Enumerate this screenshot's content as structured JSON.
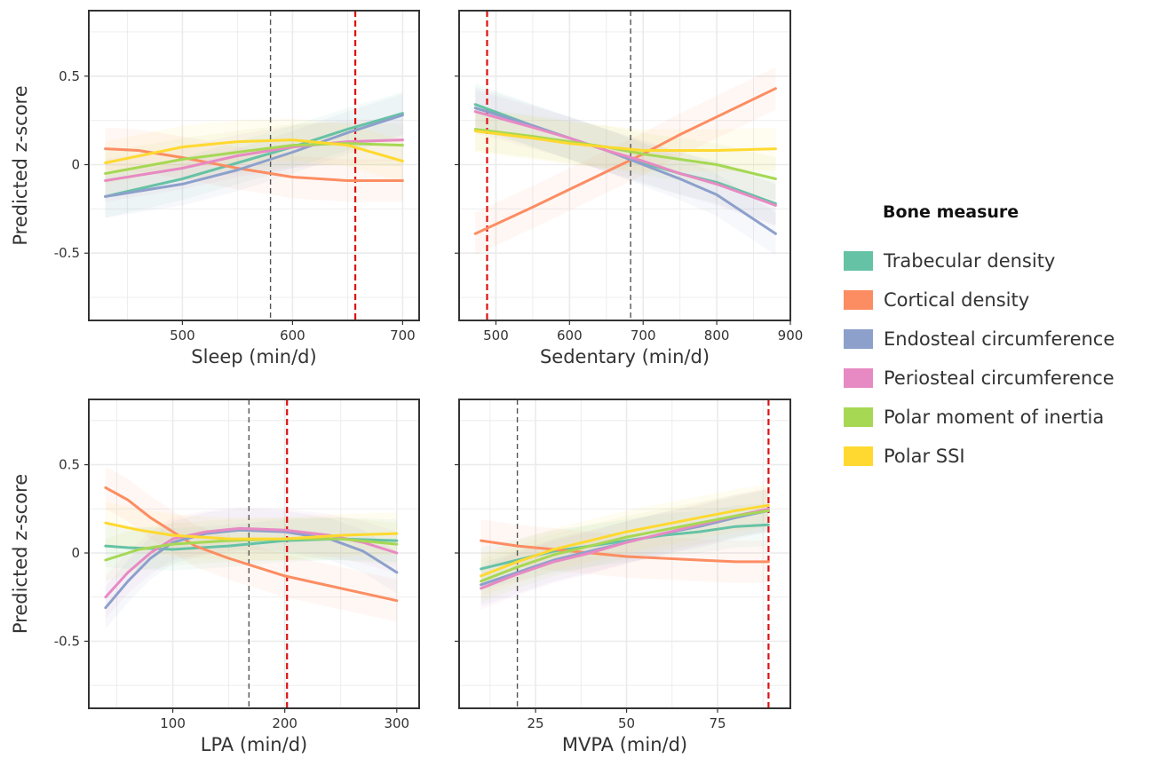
{
  "legend": {
    "title": "Bone measure",
    "items": [
      {
        "label": "Trabecular density",
        "color": "#66C2A5"
      },
      {
        "label": "Cortical density",
        "color": "#FC8D62"
      },
      {
        "label": "Endosteal circumference",
        "color": "#8DA0CB"
      },
      {
        "label": "Periosteal circumference",
        "color": "#E78AC3"
      },
      {
        "label": "Polar moment of inertia",
        "color": "#A6D854"
      },
      {
        "label": "Polar SSI",
        "color": "#FFD92F"
      }
    ]
  },
  "chart_data": [
    {
      "type": "line",
      "xlabel": "Sleep (min/d)",
      "ylabel": "Predicted z-score",
      "xlim": [
        415,
        715
      ],
      "ylim": [
        -0.88,
        0.87
      ],
      "xticks": [
        500,
        600,
        700
      ],
      "xtick_labels": [
        "500",
        "600",
        "700"
      ],
      "yticks": [
        0.5,
        0,
        -0.5
      ],
      "ytick_labels": [
        "0.5",
        "0",
        "-0.5"
      ],
      "show_yticklabels": true,
      "vlines": [
        {
          "x": 580,
          "color": "#555555",
          "style": "dashed"
        },
        {
          "x": 657,
          "color": "#DD1111",
          "style": "dashed"
        }
      ],
      "series": [
        {
          "name": "Trabecular density",
          "x": [
            430,
            500,
            550,
            600,
            650,
            700
          ],
          "y": [
            -0.18,
            -0.08,
            0.01,
            0.1,
            0.2,
            0.29
          ]
        },
        {
          "name": "Cortical density",
          "x": [
            430,
            460,
            500,
            550,
            600,
            650,
            700
          ],
          "y": [
            0.09,
            0.08,
            0.04,
            -0.02,
            -0.07,
            -0.09,
            -0.09
          ]
        },
        {
          "name": "Endosteal circumference",
          "x": [
            430,
            500,
            550,
            600,
            650,
            700
          ],
          "y": [
            -0.18,
            -0.11,
            -0.03,
            0.07,
            0.18,
            0.28
          ]
        },
        {
          "name": "Periosteal circumference",
          "x": [
            430,
            500,
            550,
            600,
            650,
            700
          ],
          "y": [
            -0.09,
            -0.02,
            0.05,
            0.1,
            0.13,
            0.14
          ]
        },
        {
          "name": "Polar moment of inertia",
          "x": [
            430,
            500,
            550,
            600,
            650,
            700
          ],
          "y": [
            -0.05,
            0.03,
            0.07,
            0.11,
            0.12,
            0.11
          ]
        },
        {
          "name": "Polar SSI",
          "x": [
            430,
            500,
            550,
            600,
            650,
            700
          ],
          "y": [
            0.01,
            0.1,
            0.13,
            0.14,
            0.11,
            0.02
          ]
        }
      ]
    },
    {
      "type": "line",
      "xlabel": "Sedentary (min/d)",
      "ylabel": "",
      "xlim": [
        450,
        900
      ],
      "ylim": [
        -0.88,
        0.87
      ],
      "xticks": [
        500,
        600,
        700,
        800,
        900
      ],
      "xtick_labels": [
        "500",
        "600",
        "700",
        "800",
        "900"
      ],
      "yticks": [
        0.5,
        0,
        -0.5
      ],
      "ytick_labels": [],
      "show_yticklabels": false,
      "vlines": [
        {
          "x": 488,
          "color": "#DD1111",
          "style": "dashed"
        },
        {
          "x": 683,
          "color": "#555555",
          "style": "dashed"
        }
      ],
      "series": [
        {
          "name": "Trabecular density",
          "x": [
            472,
            550,
            600,
            650,
            700,
            750,
            800,
            880
          ],
          "y": [
            0.34,
            0.22,
            0.15,
            0.08,
            0.01,
            -0.05,
            -0.1,
            -0.22
          ]
        },
        {
          "name": "Cortical density",
          "x": [
            472,
            550,
            600,
            650,
            700,
            750,
            800,
            880
          ],
          "y": [
            -0.39,
            -0.24,
            -0.14,
            -0.04,
            0.06,
            0.17,
            0.27,
            0.43
          ]
        },
        {
          "name": "Endosteal circumference",
          "x": [
            472,
            550,
            600,
            650,
            700,
            750,
            800,
            880
          ],
          "y": [
            0.32,
            0.22,
            0.15,
            0.08,
            0.0,
            -0.08,
            -0.17,
            -0.39
          ]
        },
        {
          "name": "Periosteal circumference",
          "x": [
            472,
            550,
            600,
            650,
            700,
            750,
            800,
            880
          ],
          "y": [
            0.3,
            0.21,
            0.15,
            0.08,
            0.02,
            -0.05,
            -0.11,
            -0.23
          ]
        },
        {
          "name": "Polar moment of inertia",
          "x": [
            472,
            550,
            600,
            650,
            700,
            750,
            800,
            880
          ],
          "y": [
            0.2,
            0.16,
            0.13,
            0.1,
            0.06,
            0.03,
            0.0,
            -0.08
          ]
        },
        {
          "name": "Polar SSI",
          "x": [
            472,
            550,
            600,
            650,
            700,
            750,
            800,
            880
          ],
          "y": [
            0.19,
            0.15,
            0.12,
            0.1,
            0.08,
            0.08,
            0.08,
            0.09
          ]
        }
      ]
    },
    {
      "type": "line",
      "xlabel": "LPA (min/d)",
      "ylabel": "Predicted z-score",
      "xlim": [
        25,
        320
      ],
      "ylim": [
        -0.88,
        0.87
      ],
      "xticks": [
        100,
        200,
        300
      ],
      "xtick_labels": [
        "100",
        "200",
        "300"
      ],
      "yticks": [
        0.5,
        0,
        -0.5
      ],
      "ytick_labels": [
        "0.5",
        "0",
        "-0.5"
      ],
      "show_yticklabels": true,
      "vlines": [
        {
          "x": 168,
          "color": "#555555",
          "style": "dashed"
        },
        {
          "x": 202,
          "color": "#DD1111",
          "style": "dashed"
        }
      ],
      "series": [
        {
          "name": "Trabecular density",
          "x": [
            40,
            60,
            100,
            150,
            200,
            250,
            300
          ],
          "y": [
            0.04,
            0.03,
            0.02,
            0.04,
            0.07,
            0.08,
            0.07
          ]
        },
        {
          "name": "Cortical density",
          "x": [
            40,
            60,
            80,
            100,
            120,
            150,
            200,
            250,
            300
          ],
          "y": [
            0.37,
            0.3,
            0.2,
            0.12,
            0.04,
            -0.03,
            -0.13,
            -0.2,
            -0.27
          ]
        },
        {
          "name": "Endosteal circumference",
          "x": [
            40,
            60,
            80,
            100,
            130,
            160,
            200,
            240,
            270,
            300
          ],
          "y": [
            -0.31,
            -0.16,
            -0.03,
            0.06,
            0.11,
            0.13,
            0.12,
            0.08,
            0.01,
            -0.11
          ]
        },
        {
          "name": "Periosteal circumference",
          "x": [
            40,
            60,
            80,
            100,
            130,
            160,
            200,
            240,
            270,
            300
          ],
          "y": [
            -0.25,
            -0.11,
            0.0,
            0.08,
            0.12,
            0.14,
            0.13,
            0.1,
            0.06,
            0.0
          ]
        },
        {
          "name": "Polar moment of inertia",
          "x": [
            40,
            70,
            100,
            150,
            200,
            250,
            300
          ],
          "y": [
            -0.04,
            0.02,
            0.05,
            0.07,
            0.08,
            0.08,
            0.05
          ]
        },
        {
          "name": "Polar SSI",
          "x": [
            40,
            70,
            100,
            150,
            200,
            250,
            300
          ],
          "y": [
            0.17,
            0.13,
            0.1,
            0.08,
            0.08,
            0.1,
            0.11
          ]
        }
      ]
    },
    {
      "type": "line",
      "xlabel": "MVPA (min/d)",
      "ylabel": "",
      "xlim": [
        4,
        95
      ],
      "ylim": [
        -0.88,
        0.87
      ],
      "xticks": [
        25,
        50,
        75
      ],
      "xtick_labels": [
        "25",
        "50",
        "75"
      ],
      "yticks": [
        0.5,
        0,
        -0.5
      ],
      "ytick_labels": [],
      "show_yticklabels": false,
      "vlines": [
        {
          "x": 20,
          "color": "#555555",
          "style": "dashed"
        },
        {
          "x": 89,
          "color": "#DD1111",
          "style": "dashed"
        }
      ],
      "series": [
        {
          "name": "Trabecular density",
          "x": [
            10,
            20,
            30,
            40,
            50,
            60,
            70,
            80,
            89
          ],
          "y": [
            -0.09,
            -0.04,
            0.01,
            0.04,
            0.07,
            0.1,
            0.12,
            0.15,
            0.16
          ]
        },
        {
          "name": "Cortical density",
          "x": [
            10,
            20,
            30,
            40,
            50,
            60,
            70,
            80,
            89
          ],
          "y": [
            0.07,
            0.04,
            0.02,
            0.0,
            -0.02,
            -0.03,
            -0.04,
            -0.05,
            -0.05
          ]
        },
        {
          "name": "Endosteal circumference",
          "x": [
            10,
            20,
            30,
            40,
            50,
            60,
            70,
            80,
            89
          ],
          "y": [
            -0.18,
            -0.11,
            -0.04,
            0.01,
            0.06,
            0.11,
            0.15,
            0.2,
            0.24
          ]
        },
        {
          "name": "Periosteal circumference",
          "x": [
            10,
            20,
            30,
            40,
            50,
            60,
            70,
            80,
            89
          ],
          "y": [
            -0.2,
            -0.12,
            -0.05,
            0.0,
            0.06,
            0.11,
            0.16,
            0.21,
            0.25
          ]
        },
        {
          "name": "Polar moment of inertia",
          "x": [
            10,
            20,
            30,
            40,
            50,
            60,
            70,
            80,
            89
          ],
          "y": [
            -0.16,
            -0.08,
            -0.01,
            0.04,
            0.09,
            0.13,
            0.17,
            0.21,
            0.24
          ]
        },
        {
          "name": "Polar SSI",
          "x": [
            10,
            20,
            30,
            40,
            50,
            60,
            70,
            80,
            89
          ],
          "y": [
            -0.13,
            -0.05,
            0.02,
            0.07,
            0.12,
            0.16,
            0.2,
            0.24,
            0.27
          ]
        }
      ]
    }
  ]
}
